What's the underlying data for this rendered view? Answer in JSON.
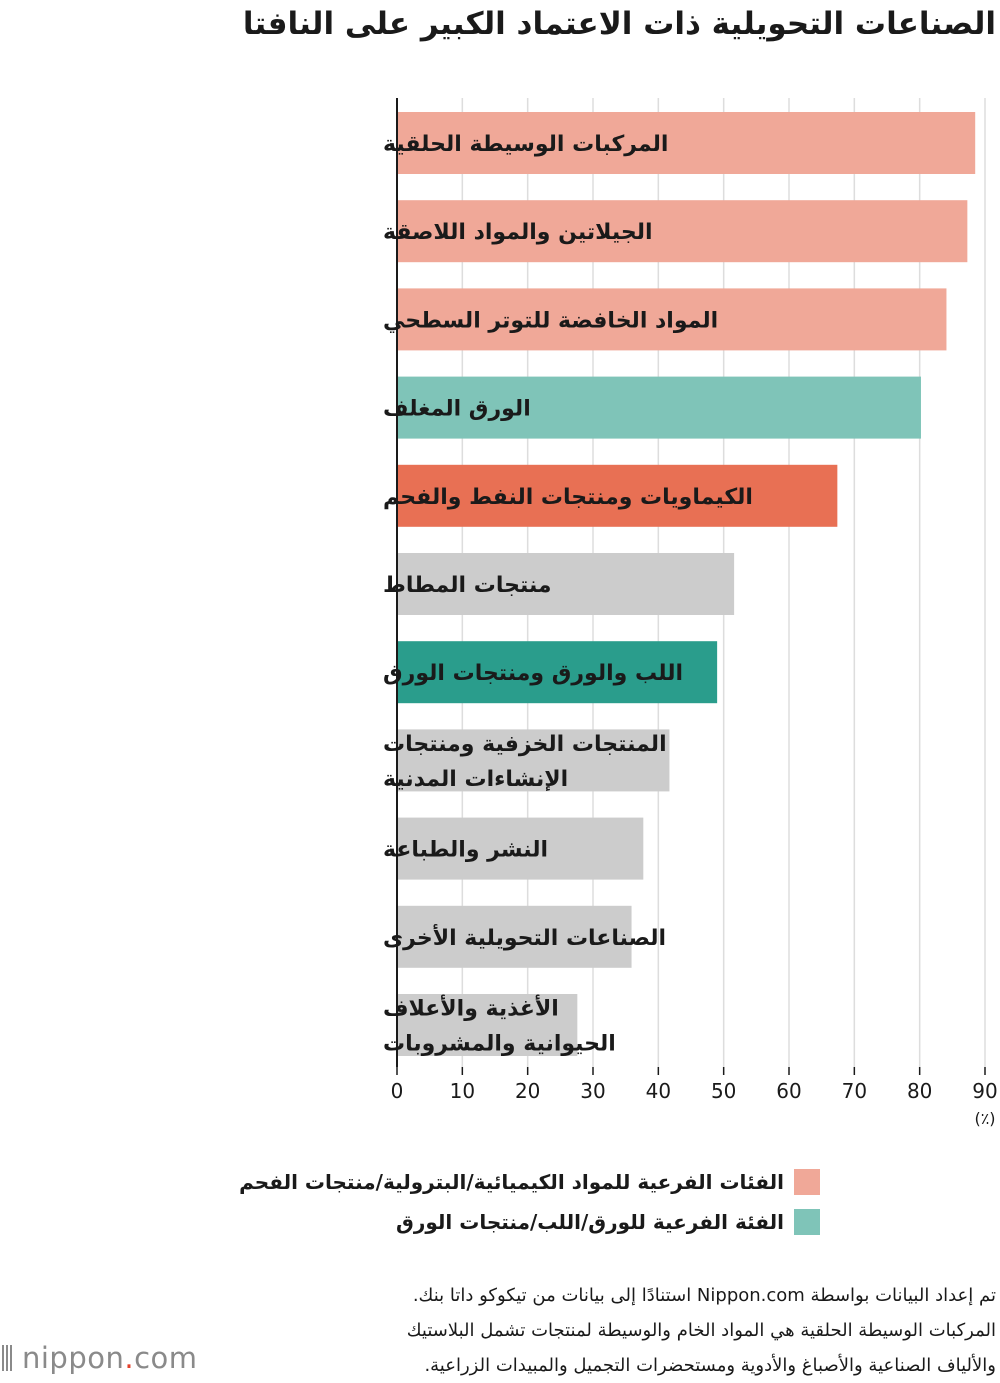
{
  "chart_data": {
    "type": "bar",
    "orientation": "horizontal",
    "title": "الصناعات التحويلية ذات الاعتماد الكبير على النافتا",
    "categories": [
      [
        "المركبات الوسيطة الحلقية"
      ],
      [
        "الجيلاتين والمواد اللاصقة"
      ],
      [
        "المواد الخافضة للتوتر السطحي"
      ],
      [
        "الورق المغلف"
      ],
      [
        "الكيماويات ومنتجات النفط والفحم"
      ],
      [
        "منتجات المطاط"
      ],
      [
        "اللب والورق ومنتجات الورق"
      ],
      [
        "المنتجات الخزفية ومنتجات",
        "الإنشاءات المدنية"
      ],
      [
        "النشر والطباعة"
      ],
      [
        "الصناعات التحويلية الأخرى"
      ],
      [
        "الأغذية والأعلاف",
        "الحيوانية والمشروبات"
      ]
    ],
    "values": [
      88.5,
      87.3,
      84.1,
      80.2,
      67.4,
      51.6,
      49.0,
      41.7,
      37.7,
      35.9,
      27.6
    ],
    "bar_colors": [
      "#f0a898",
      "#f0a898",
      "#f0a898",
      "#7fc4b8",
      "#e87054",
      "#cccccc",
      "#2a9d8c",
      "#cccccc",
      "#cccccc",
      "#cccccc",
      "#cccccc"
    ],
    "xlim": [
      0,
      90
    ],
    "xticks": [
      0,
      10,
      20,
      30,
      40,
      50,
      60,
      70,
      80,
      90
    ],
    "xunit": "(٪)",
    "grid": true,
    "grid_color": "#dddddd",
    "axis_color": "#1a1a1a",
    "legend_placement": "bottom",
    "legend": [
      {
        "label": "الفئات الفرعية للمواد الكيميائية/البترولية/منتجات الفحم",
        "color": "#f0a898"
      },
      {
        "label": "الفئة الفرعية للورق/اللب/منتجات الورق",
        "color": "#7fc4b8"
      }
    ]
  },
  "notes": [
    "تم إعداد البيانات بواسطة Nippon.com استنادًا إلى بيانات من تيكوكو داتا بنك.",
    "المركبات الوسيطة الحلقية هي المواد الخام والوسيطة لمنتجات تشمل البلاستيك",
    "والألياف الصناعية والأصباغ والأدوية ومستحضرات التجميل والمبيدات الزراعية."
  ],
  "logo": {
    "text": "nippon",
    "dot": ".",
    "suffix": "com"
  }
}
